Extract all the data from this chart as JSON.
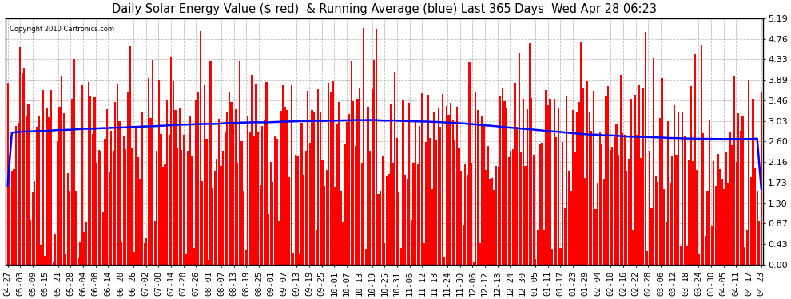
{
  "title": "Daily Solar Energy Value ($ red)  & Running Average (blue) Last 365 Days  Wed Apr 28 06:23",
  "copyright_text": "Copyright 2010 Cartronics.com",
  "yticks": [
    0.0,
    0.43,
    0.87,
    1.3,
    1.73,
    2.16,
    2.6,
    3.03,
    3.46,
    3.89,
    4.33,
    4.76,
    5.19
  ],
  "ymax": 5.19,
  "ymin": 0.0,
  "bar_color": "#FF0000",
  "avg_color": "#0000FF",
  "background_color": "#FFFFFF",
  "plot_bg_color": "#FFFFFF",
  "grid_color": "#BBBBBB",
  "title_fontsize": 10.5,
  "tick_fontsize": 8,
  "xtick_labels": [
    "04-27",
    "05-03",
    "05-09",
    "05-15",
    "05-21",
    "05-28",
    "06-04",
    "06-08",
    "06-14",
    "06-20",
    "06-26",
    "07-02",
    "07-08",
    "07-14",
    "07-20",
    "07-26",
    "08-01",
    "08-07",
    "08-13",
    "08-19",
    "08-25",
    "09-01",
    "09-07",
    "09-13",
    "09-19",
    "09-25",
    "10-01",
    "10-07",
    "10-13",
    "10-19",
    "10-25",
    "10-31",
    "11-06",
    "11-12",
    "11-18",
    "11-24",
    "11-30",
    "12-06",
    "12-12",
    "12-18",
    "12-24",
    "12-30",
    "01-05",
    "01-11",
    "01-17",
    "01-23",
    "01-29",
    "02-04",
    "02-10",
    "02-16",
    "02-22",
    "02-28",
    "03-06",
    "03-12",
    "03-18",
    "03-24",
    "03-30",
    "04-05",
    "04-11",
    "04-17",
    "04-23"
  ],
  "avg_points": [
    [
      0,
      2.78
    ],
    [
      30,
      2.85
    ],
    [
      60,
      2.9
    ],
    [
      90,
      2.96
    ],
    [
      120,
      3.0
    ],
    [
      150,
      3.03
    ],
    [
      175,
      3.05
    ],
    [
      200,
      3.02
    ],
    [
      220,
      2.98
    ],
    [
      240,
      2.9
    ],
    [
      260,
      2.82
    ],
    [
      280,
      2.75
    ],
    [
      300,
      2.7
    ],
    [
      320,
      2.67
    ],
    [
      340,
      2.65
    ],
    [
      360,
      2.65
    ],
    [
      364,
      2.67
    ]
  ]
}
